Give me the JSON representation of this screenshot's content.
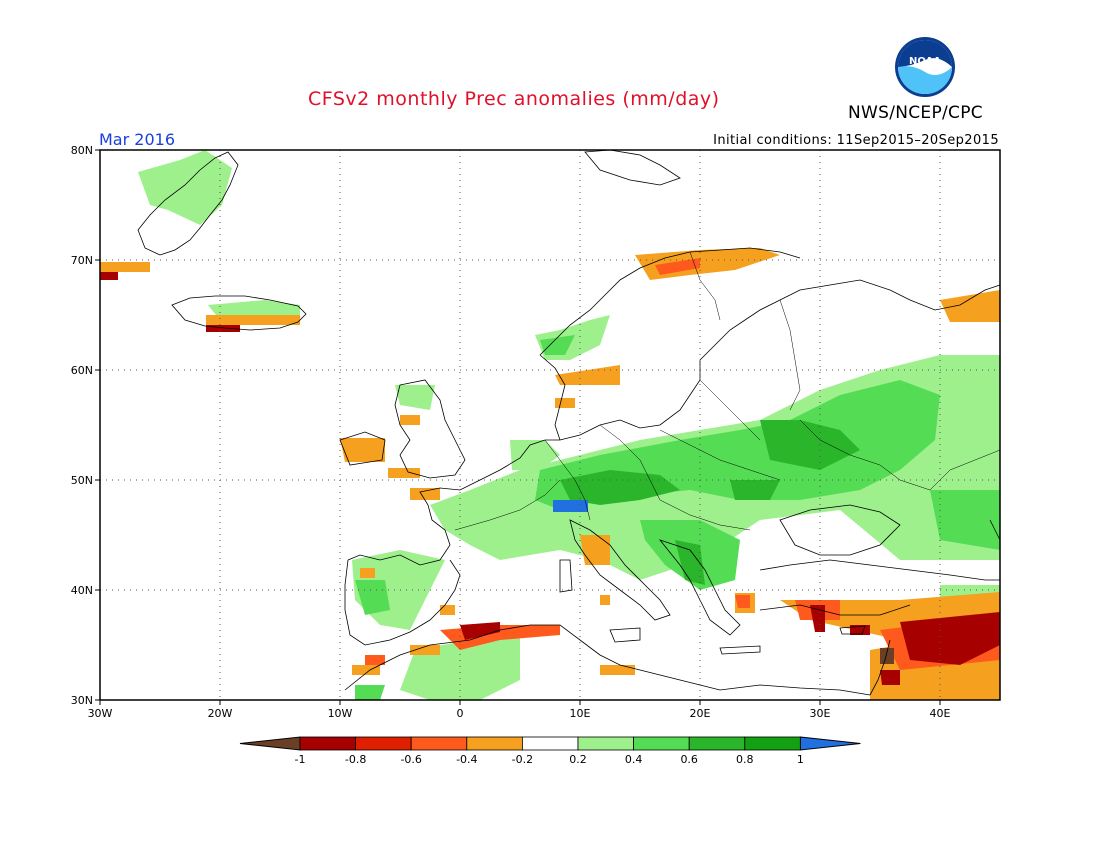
{
  "header": {
    "title": "CFSv2 monthly Prec anomalies (mm/day)",
    "agency": "NWS/NCEP/CPC",
    "logo_text": "NOAA",
    "target_month": "Mar 2016",
    "initial_conditions": "Initial conditions: 11Sep2015–20Sep2015"
  },
  "map": {
    "region": "Europe",
    "lon_range": [
      -30,
      45
    ],
    "lat_range": [
      30,
      80
    ],
    "lat_labels": [
      "80N",
      "70N",
      "60N",
      "50N",
      "40N",
      "30N"
    ],
    "lon_labels": [
      "30W",
      "20W",
      "10W",
      "0",
      "10E",
      "20E",
      "30E",
      "40E"
    ],
    "grid": "dotted every 10 degrees"
  },
  "legend": {
    "tick_labels": [
      "-1",
      "-0.8",
      "-0.6",
      "-0.4",
      "-0.2",
      "0.2",
      "0.4",
      "0.6",
      "0.8",
      "1"
    ],
    "colors": [
      "#6b3e26",
      "#a60000",
      "#e01f00",
      "#ff5a1e",
      "#f5a01e",
      "#ffffff",
      "#9ef08c",
      "#55dc55",
      "#2ab52a",
      "#13a013",
      "#2070e0"
    ]
  },
  "colors": {
    "title": "#e0102a",
    "period": "#1a3fe0",
    "dry_strong": "#a60000",
    "dry_mid": "#e01f00",
    "dry_weak": "#f5a01e",
    "wet_weak": "#9ef08c",
    "wet_mid": "#55dc55",
    "wet_strong": "#2ab52a",
    "wet_extreme": "#2070e0"
  }
}
